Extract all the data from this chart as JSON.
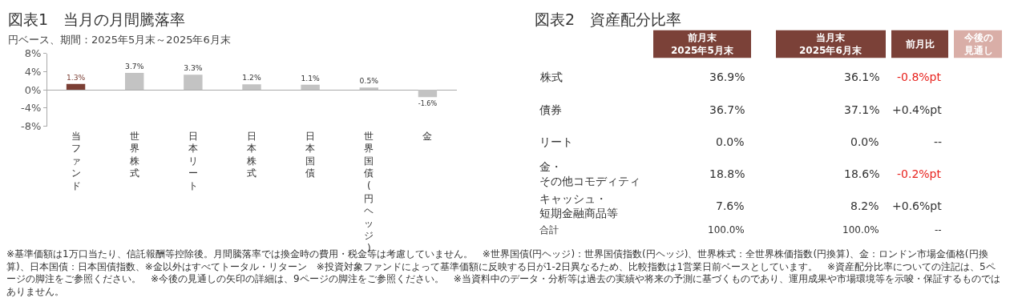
{
  "chart_data": [
    {
      "type": "bar",
      "title": "図表1　当月の月間騰落率",
      "subtitle": "円ベース、期間：2025年5月末～2025年6月末",
      "categories": [
        "当ファンド",
        "世界株式",
        "日本リート",
        "日本株式",
        "日本国債",
        "世界国債(円ヘッジ)",
        "金"
      ],
      "values": [
        1.3,
        3.7,
        3.3,
        1.2,
        1.1,
        0.5,
        -1.6
      ],
      "colors": [
        "#7b3f35",
        "#c3c3c3",
        "#c3c3c3",
        "#c3c3c3",
        "#c3c3c3",
        "#c3c3c3",
        "#c3c3c3"
      ],
      "value_labels": [
        "1.3%",
        "3.7%",
        "3.3%",
        "1.2%",
        "1.1%",
        "0.5%",
        "-1.6%"
      ],
      "ylim": [
        -8,
        8
      ],
      "yticks": [
        {
          "value": 8,
          "label": "8%"
        },
        {
          "value": 4,
          "label": "4%"
        },
        {
          "value": 0,
          "label": "0%"
        },
        {
          "value": -4,
          "label": "-4%"
        },
        {
          "value": -8,
          "label": "-8%"
        }
      ],
      "annotations": [
        "※基準価額は1万口当たり、信託報酬等控除後。月間騰落率では換金時の費用・税金等は考慮していません。　※世界国債(円ヘッジ)：世界国債指数(円ヘッジ)、世界株式：全世界株価指数(円換算)、金：ロンドン市場金価格(円換算)、日本国債：日本国債指数、※金以外はすべてトータル・リターン　※投資対象ファンドによって基準価額に反映する日が1-2日異なるため、比較指数は1営業日前ベースとしています。　※資産配分比率についての注記は、5ページの脚注をご参照ください。　※今後の見通しの矢印の詳細は、9ページの脚注をご参照ください。　※当資料中のデータ・分析等は過去の実績や将来の予測に基づくものであり、運用成果や市場環境等を示唆・保証するものではありません。"
      ]
    },
    {
      "type": "heatmap",
      "title": "図表2　資産配分比率",
      "categories": [
        "前月末\n2025年5月末",
        "当月末\n2025年6月末",
        "前月比",
        "今後の見通し"
      ],
      "y_categories": [
        "株式",
        "債券",
        "リート",
        "金・その他コモディティ",
        "キャッシュ・短期金融商品等",
        "合計"
      ],
      "cells": [
        [
          36.9,
          36.1,
          -0.8,
          null
        ],
        [
          36.7,
          37.1,
          0.4,
          null
        ],
        [
          0.0,
          0.0,
          null,
          null
        ],
        [
          18.8,
          18.6,
          -0.2,
          null
        ],
        [
          7.6,
          8.2,
          0.6,
          null
        ],
        [
          100.0,
          100.0,
          null,
          null
        ]
      ],
      "cell_labels": [
        [
          "36.9%",
          "36.1%",
          "-0.8%pt",
          null
        ],
        [
          "36.7%",
          "37.1%",
          "+0.4%pt",
          null
        ],
        [
          "0.0%",
          "0.0%",
          "--",
          null
        ],
        [
          "18.8%",
          "18.6%",
          "-0.2%pt",
          null
        ],
        [
          "7.6%",
          "8.2%",
          "+0.6%pt",
          null
        ],
        [
          "100.0%",
          "100.0%",
          "--",
          null
        ]
      ]
    }
  ]
}
